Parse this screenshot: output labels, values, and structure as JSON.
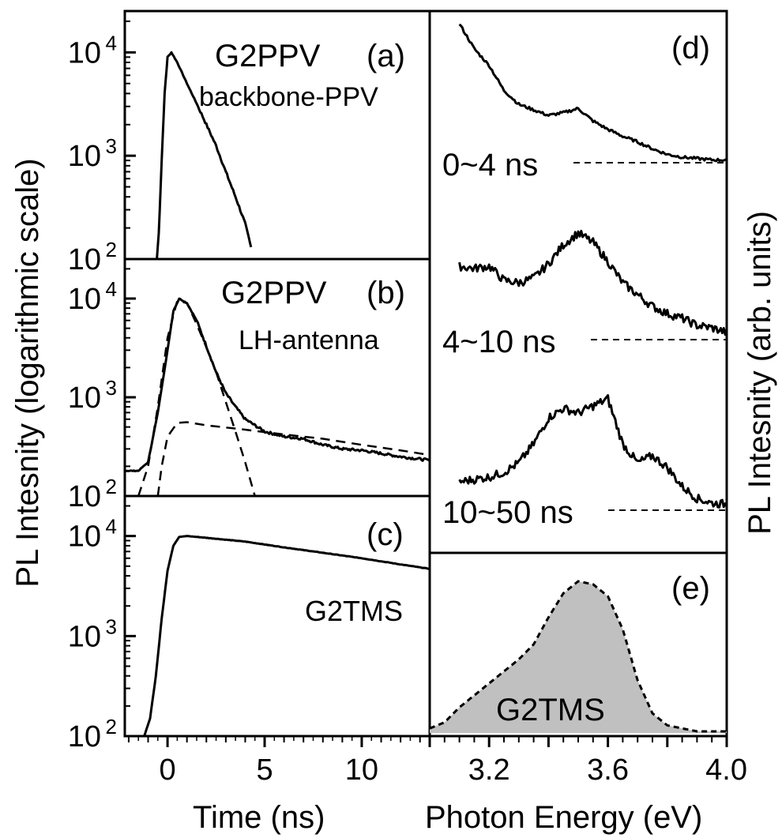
{
  "chart_data": [
    {
      "panel": "a",
      "type": "line",
      "panel_label": "(a)",
      "sample": "G2PPV",
      "annotation": "backbone-PPV",
      "yscale": "log",
      "ylim": [
        100,
        25000
      ],
      "xlim": [
        -2.2,
        13.5
      ],
      "x_ticks": [
        "0",
        "5",
        "10"
      ],
      "y_ticks": [
        100,
        1000,
        10000
      ],
      "series": [
        {
          "style": "solid",
          "x": [
            -0.55,
            -0.45,
            -0.3,
            -0.15,
            0,
            0.2,
            0.5,
            1,
            1.5,
            2,
            2.5,
            3,
            3.5,
            4,
            4.3
          ],
          "y": [
            100,
            180,
            900,
            4000,
            9000,
            10000,
            8000,
            5000,
            3200,
            2000,
            1250,
            700,
            400,
            220,
            130
          ]
        }
      ]
    },
    {
      "panel": "b",
      "type": "line",
      "panel_label": "(b)",
      "sample": "G2PPV",
      "annotation": "LH-antenna",
      "yscale": "log",
      "ylim": [
        100,
        25000
      ],
      "xlim": [
        -2.2,
        13.5
      ],
      "series": [
        {
          "style": "solid",
          "x": [
            -2.2,
            -1.5,
            -1,
            -0.5,
            0,
            0.3,
            0.6,
            1,
            1.5,
            2,
            2.5,
            3,
            3.5,
            4,
            5,
            6,
            7,
            8,
            9,
            10,
            11,
            12,
            13.5
          ],
          "y": [
            180,
            180,
            220,
            700,
            3000,
            7500,
            10000,
            9000,
            6000,
            3300,
            1800,
            1100,
            800,
            600,
            450,
            400,
            380,
            330,
            300,
            290,
            270,
            250,
            230
          ]
        },
        {
          "style": "dashed",
          "x": [
            -1.5,
            -1,
            -0.5,
            0,
            0.5,
            1,
            1.5,
            2,
            2.5,
            3,
            3.5,
            4,
            4.5
          ],
          "y": [
            100,
            200,
            800,
            4000,
            9500,
            9000,
            5500,
            3200,
            1800,
            900,
            450,
            220,
            100
          ]
        },
        {
          "style": "dashed",
          "x": [
            -0.5,
            -0.3,
            0,
            0.5,
            1,
            2,
            4,
            6,
            8,
            10,
            12,
            13.5
          ],
          "y": [
            100,
            200,
            400,
            550,
            560,
            520,
            470,
            420,
            380,
            330,
            290,
            260
          ]
        }
      ]
    },
    {
      "panel": "c",
      "type": "line",
      "panel_label": "(c)",
      "sample": "G2TMS",
      "yscale": "log",
      "ylim": [
        100,
        25000
      ],
      "xlim": [
        -2.2,
        13.5
      ],
      "xlabel": "Time (ns)",
      "series": [
        {
          "style": "solid",
          "x": [
            -1.2,
            -0.9,
            -0.6,
            -0.3,
            0,
            0.3,
            0.6,
            1,
            2,
            4,
            6,
            8,
            10,
            12,
            13.5
          ],
          "y": [
            100,
            150,
            400,
            1500,
            4500,
            8000,
            9800,
            10000,
            9600,
            8800,
            7700,
            6800,
            6000,
            5200,
            4700
          ]
        }
      ]
    },
    {
      "panel": "d",
      "type": "line",
      "panel_label": "(d)",
      "yscale": "linear",
      "xlim": [
        3.0,
        4.0
      ],
      "series": [
        {
          "name": "0~4 ns",
          "x": [
            3.1,
            3.15,
            3.2,
            3.25,
            3.3,
            3.35,
            3.4,
            3.45,
            3.5,
            3.55,
            3.6,
            3.65,
            3.7,
            3.75,
            3.8,
            3.85,
            3.9,
            3.95,
            4.0
          ],
          "y": [
            1.0,
            0.82,
            0.7,
            0.52,
            0.42,
            0.38,
            0.34,
            0.36,
            0.39,
            0.3,
            0.24,
            0.19,
            0.15,
            0.1,
            0.06,
            0.04,
            0.03,
            0.02,
            0.02
          ]
        },
        {
          "name": "4~10 ns",
          "x": [
            3.1,
            3.15,
            3.2,
            3.25,
            3.3,
            3.35,
            3.4,
            3.45,
            3.5,
            3.55,
            3.6,
            3.65,
            3.7,
            3.75,
            3.8,
            3.85,
            3.9,
            3.95,
            4.0
          ],
          "y": [
            0.62,
            0.6,
            0.62,
            0.5,
            0.48,
            0.52,
            0.64,
            0.8,
            0.9,
            0.82,
            0.66,
            0.48,
            0.38,
            0.28,
            0.22,
            0.18,
            0.12,
            0.1,
            0.06
          ]
        },
        {
          "name": "10~50 ns",
          "x": [
            3.1,
            3.15,
            3.2,
            3.25,
            3.3,
            3.35,
            3.4,
            3.45,
            3.5,
            3.55,
            3.6,
            3.65,
            3.7,
            3.75,
            3.8,
            3.85,
            3.9,
            3.95,
            4.0
          ],
          "y": [
            0.24,
            0.26,
            0.28,
            0.32,
            0.4,
            0.56,
            0.78,
            0.86,
            0.82,
            0.88,
            0.94,
            0.56,
            0.4,
            0.46,
            0.36,
            0.2,
            0.1,
            0.06,
            0.05
          ]
        }
      ]
    },
    {
      "panel": "e",
      "type": "area",
      "panel_label": "(e)",
      "sample": "G2TMS",
      "yscale": "linear",
      "xlim": [
        3.0,
        4.0
      ],
      "x_ticks": [
        "3.2",
        "3.6",
        "4.0"
      ],
      "xlabel": "Photon Energy (eV)",
      "series": [
        {
          "fill": "#c0c0c0",
          "x": [
            3.0,
            3.05,
            3.1,
            3.15,
            3.2,
            3.25,
            3.3,
            3.35,
            3.4,
            3.45,
            3.5,
            3.55,
            3.6,
            3.65,
            3.7,
            3.75,
            3.8,
            3.85,
            3.9,
            3.95,
            4.0
          ],
          "y": [
            0.02,
            0.06,
            0.16,
            0.24,
            0.32,
            0.4,
            0.48,
            0.58,
            0.76,
            0.92,
            1.0,
            0.98,
            0.9,
            0.68,
            0.34,
            0.12,
            0.04,
            0.02,
            0.0,
            0.0,
            0.0
          ]
        }
      ]
    }
  ],
  "axes": {
    "y_left_label": "PL Intesnity (logarithmic scale)",
    "y_right_label": "PL Intesnity (arb. units)",
    "x_left_label": "Time (ns)",
    "x_right_label": "Photon Energy (eV)",
    "y_tick_base": "10",
    "y_tick_exps": [
      "4",
      "3",
      "2"
    ]
  },
  "style": {
    "line_color": "#000000",
    "fill_color": "#c0c0c0"
  }
}
